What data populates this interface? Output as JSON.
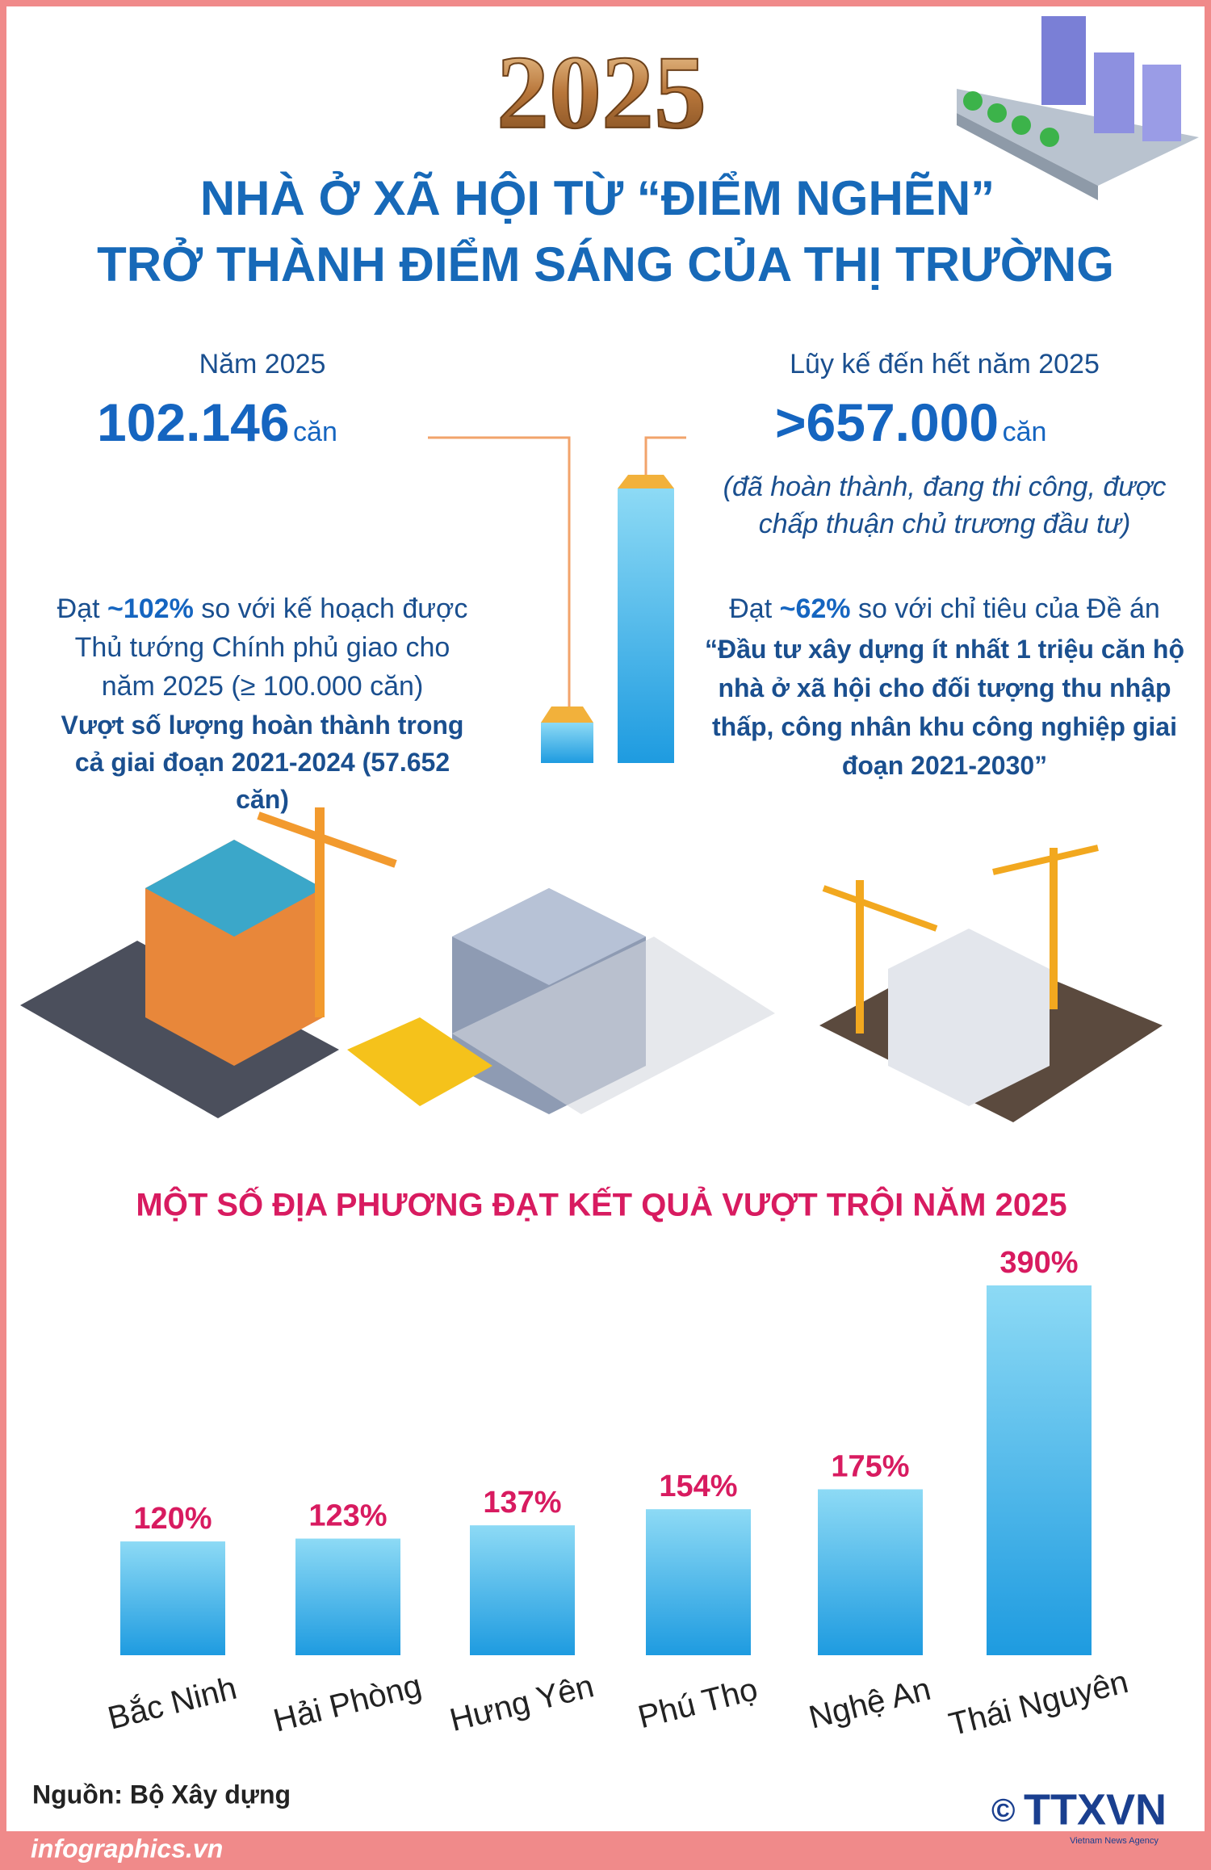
{
  "header": {
    "year": "2025",
    "title_line1": "NHÀ Ở XÃ HỘI TỪ “ĐIỂM NGHẼN”",
    "title_line2": "TRỞ THÀNH ĐIỂM SÁNG CỦA THỊ TRƯỜNG"
  },
  "left_stat": {
    "label": "Năm 2025",
    "value": "102.146",
    "unit": "căn",
    "note_prefix": "Đạt ",
    "note_highlight": "~102%",
    "note_rest": " so với kế hoạch được Thủ tướng Chính phủ giao cho năm 2025 (≥ 100.000 căn)",
    "note_bold": "Vượt số lượng hoàn thành trong cả giai đoạn 2021-2024 (57.652 căn)"
  },
  "right_stat": {
    "label": "Lũy kế đến hết năm 2025",
    "value": ">657.000",
    "unit": "căn",
    "detail": "(đã hoàn thành, đang thi công, được chấp thuận chủ trương đầu tư)",
    "note_prefix": "Đạt ",
    "note_highlight": "~62%",
    "note_rest": " so với chỉ tiêu của Đề án",
    "note_bold": "“Đầu tư xây dựng ít nhất 1 triệu căn hộ nhà ở xã hội cho đối tượng thu nhập thấp, công nhân khu công nghiệp giai đoạn 2021-2030”"
  },
  "chart_data": {
    "type": "bar",
    "title": "MỘT SỐ ĐỊA PHƯƠNG ĐẠT KẾT QUẢ VƯỢT TRỘI NĂM 2025",
    "categories": [
      "Bắc Ninh",
      "Hải Phòng",
      "Hưng Yên",
      "Phú Thọ",
      "Nghệ An",
      "Thái Nguyên"
    ],
    "values": [
      120,
      123,
      137,
      154,
      175,
      390
    ],
    "value_labels": [
      "120%",
      "123%",
      "137%",
      "154%",
      "175%",
      "390%"
    ],
    "color": "#29a8e6"
  },
  "footer": {
    "source": "Nguồn: Bộ Xây dựng",
    "site": "infographics.vn",
    "copyright": "©",
    "logo": "TTXVN",
    "agency": "Vietnam News Agency"
  }
}
